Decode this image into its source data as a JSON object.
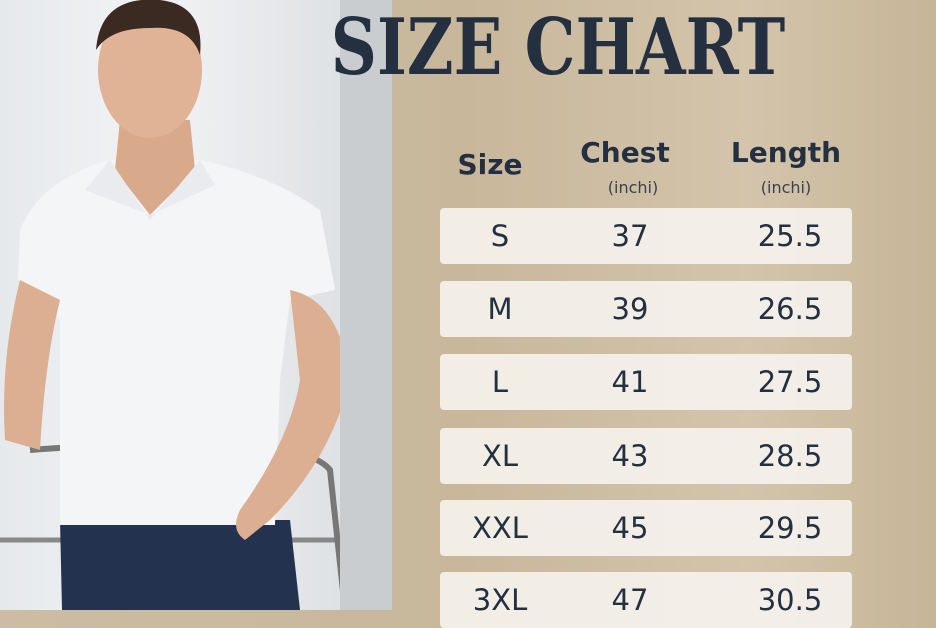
{
  "title": "SIZE CHART",
  "headers": [
    {
      "label": "Size",
      "unit": ""
    },
    {
      "label": "Chest",
      "unit": "(inchi)"
    },
    {
      "label": "Length",
      "unit": "(inchi)"
    }
  ],
  "rows": [
    {
      "size": "S",
      "chest": "37",
      "length": "25.5"
    },
    {
      "size": "M",
      "chest": "39",
      "length": "26.5"
    },
    {
      "size": "L",
      "chest": "41",
      "length": "27.5"
    },
    {
      "size": "XL",
      "chest": "43",
      "length": "28.5"
    },
    {
      "size": "XXL",
      "chest": "45",
      "length": "29.5"
    },
    {
      "size": "3XL",
      "chest": "47",
      "length": "30.5"
    }
  ],
  "colors": {
    "text": "#243040",
    "background": "#c9b89c",
    "row": "#f5f2ed",
    "shirt": "#f4f5f7",
    "jeans": "#23324f"
  }
}
